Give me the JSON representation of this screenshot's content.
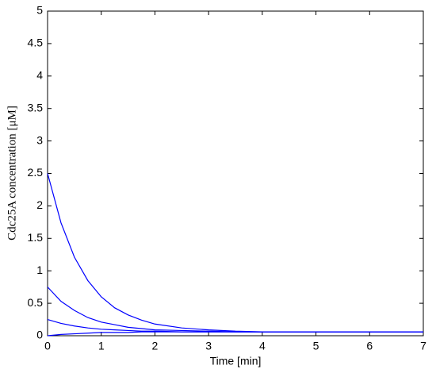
{
  "chart_data": {
    "type": "line",
    "x_label": "Time [min]",
    "y_label": "Cdc25A concentration [μM]",
    "x": [
      0,
      0.25,
      0.5,
      0.75,
      1,
      1.25,
      1.5,
      1.75,
      2,
      2.5,
      3,
      3.5,
      4,
      5,
      6,
      7
    ],
    "series": [
      {
        "color": "#0000ff",
        "values": [
          2.5,
          1.74,
          1.21,
          0.85,
          0.6,
          0.43,
          0.32,
          0.24,
          0.18,
          0.12,
          0.09,
          0.07,
          0.06,
          0.06,
          0.06,
          0.06
        ]
      },
      {
        "color": "#0000ff",
        "values": [
          0.75,
          0.53,
          0.39,
          0.28,
          0.21,
          0.17,
          0.13,
          0.11,
          0.09,
          0.08,
          0.07,
          0.06,
          0.06,
          0.06,
          0.06,
          0.06
        ]
      },
      {
        "color": "#0000ff",
        "values": [
          0.25,
          0.19,
          0.15,
          0.12,
          0.1,
          0.09,
          0.08,
          0.07,
          0.07,
          0.06,
          0.06,
          0.06,
          0.06,
          0.06,
          0.06,
          0.06
        ]
      },
      {
        "color": "#0000ff",
        "values": [
          0,
          0.02,
          0.03,
          0.04,
          0.05,
          0.05,
          0.05,
          0.06,
          0.06,
          0.06,
          0.06,
          0.06,
          0.06,
          0.06,
          0.06,
          0.06
        ]
      }
    ],
    "xlim": [
      0,
      7
    ],
    "xticks": [
      0,
      1,
      2,
      3,
      4,
      5,
      6,
      7
    ],
    "ylim": [
      0,
      5
    ],
    "yticks": [
      0,
      0.5,
      1,
      1.5,
      2,
      2.5,
      3,
      3.5,
      4,
      4.5,
      5
    ],
    "grid": false
  }
}
